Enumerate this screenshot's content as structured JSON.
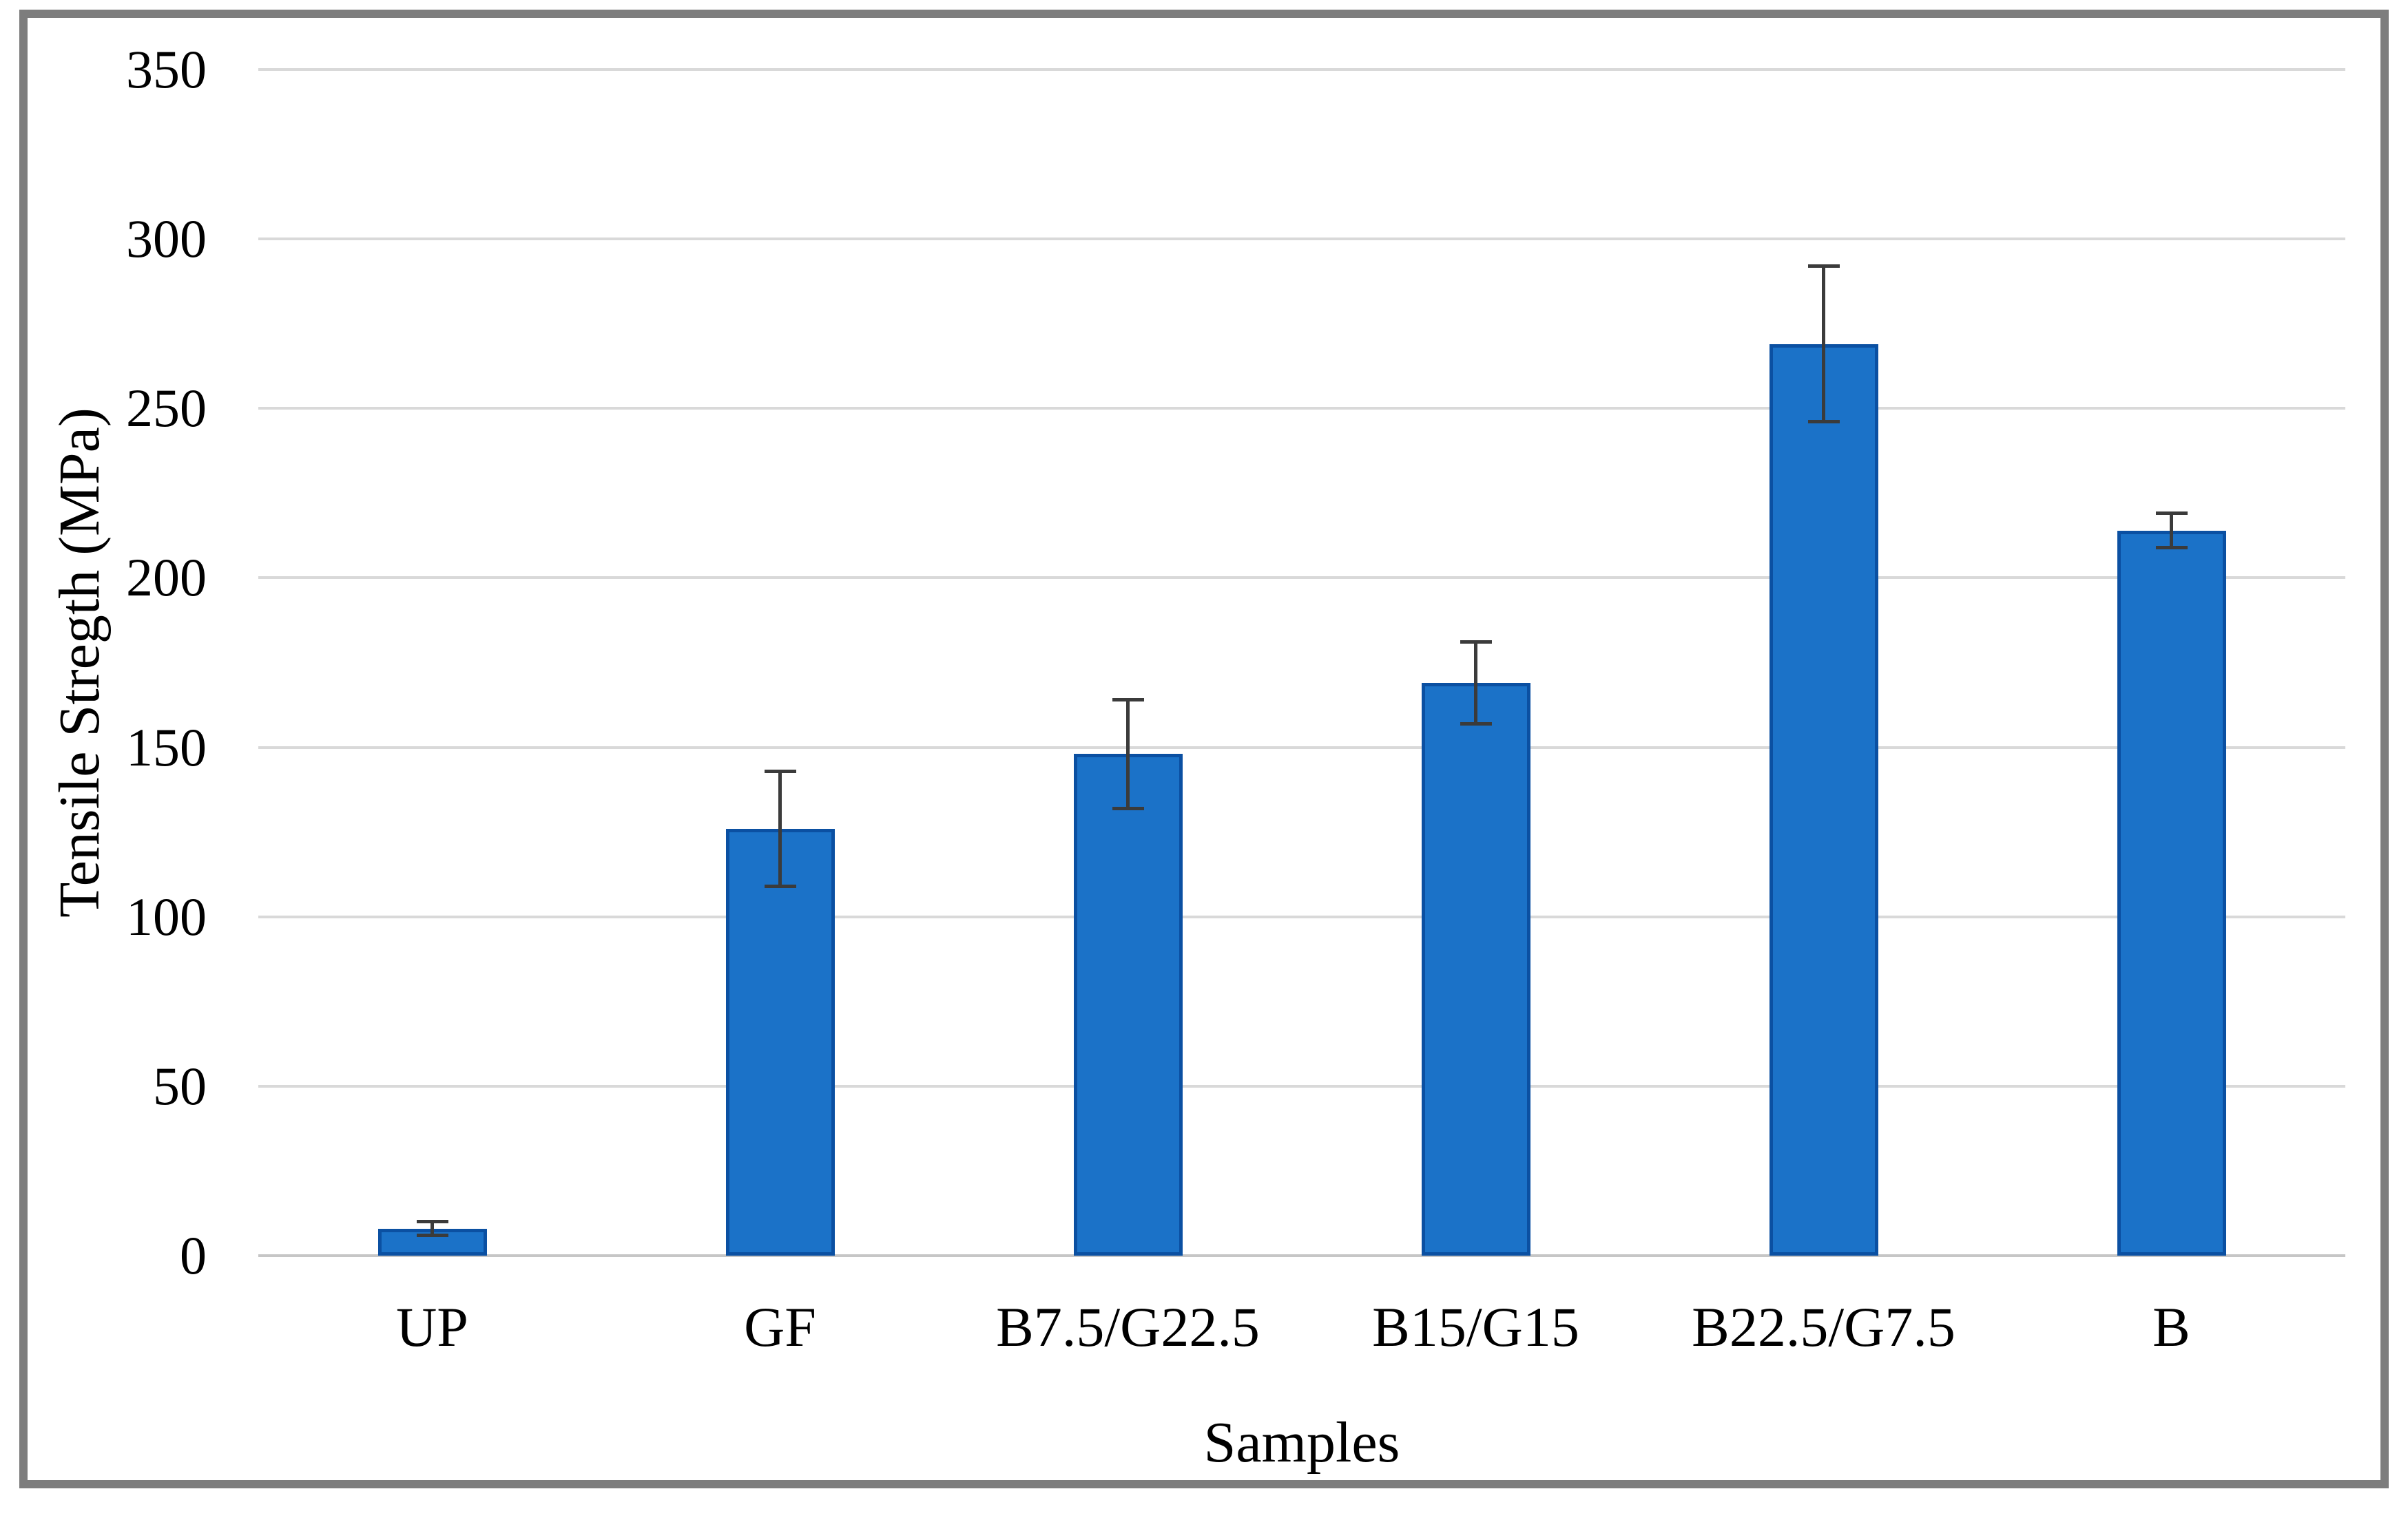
{
  "figure": {
    "frame_border_color": "#7d7d7d",
    "background_color": "#ffffff"
  },
  "chart_data": {
    "type": "bar",
    "title": "",
    "xlabel": "Samples",
    "ylabel": "Tensile Stregth (MPa)",
    "categories": [
      "UP",
      "GF",
      "B7.5/G22.5",
      "B15/G15",
      "B22.5/G7.5",
      "B"
    ],
    "values": [
      8,
      126,
      148,
      169,
      269,
      214
    ],
    "error_bars": [
      2,
      17,
      16,
      12,
      23,
      5
    ],
    "ylim": [
      0,
      350
    ],
    "yticks": [
      0,
      50,
      100,
      150,
      200,
      250,
      300,
      350
    ],
    "grid": "horizontal gridlines on",
    "legend": "none",
    "bar_color": "#1b72c8",
    "bar_border_color": "#0b50a2",
    "error_bar_color": "#3b3b3b",
    "gridline_color": "#d9d9d9",
    "baseline_color": "#c6c6c6",
    "text_color": "#000000"
  }
}
